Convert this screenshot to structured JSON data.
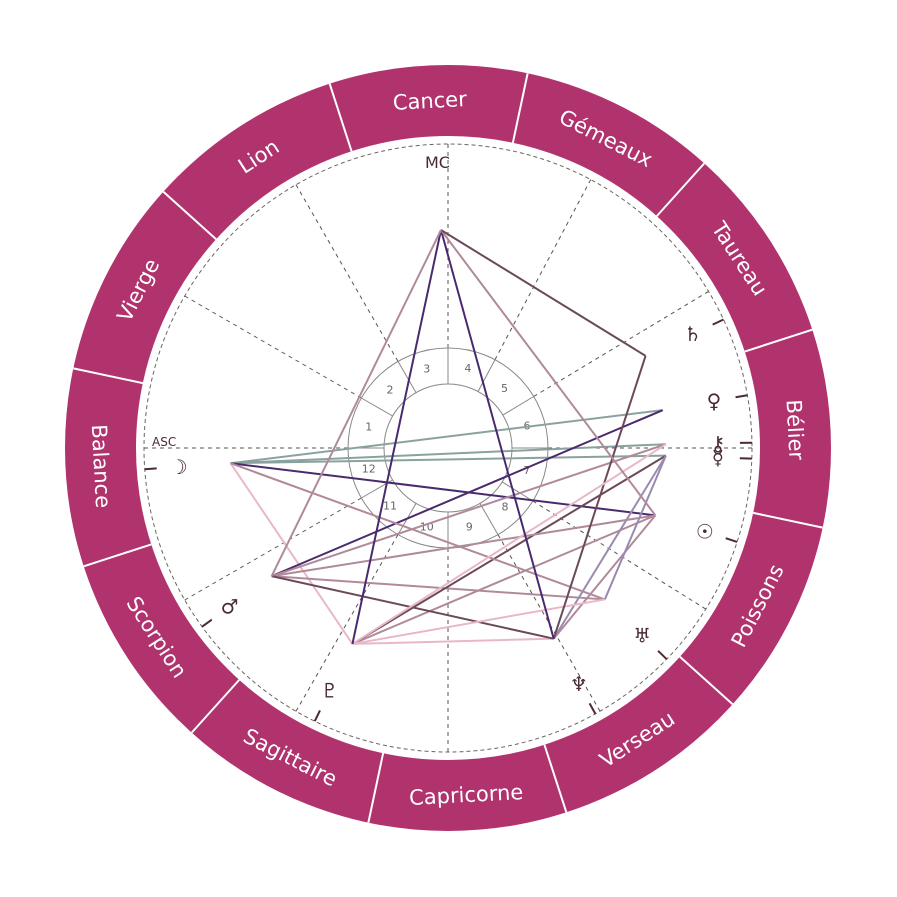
{
  "signs": [
    {
      "name": "Bélier",
      "start": 348
    },
    {
      "name": "Taureau",
      "start": 18
    },
    {
      "name": "Gémeaux",
      "start": 48
    },
    {
      "name": "Cancer",
      "start": 78
    },
    {
      "name": "Lion",
      "start": 108
    },
    {
      "name": "Vierge",
      "start": 138
    },
    {
      "name": "Balance",
      "start": 168
    },
    {
      "name": "Scorpion",
      "start": 198
    },
    {
      "name": "Sagittaire",
      "start": 228
    },
    {
      "name": "Capricorne",
      "start": 258
    },
    {
      "name": "Verseau",
      "start": 288
    },
    {
      "name": "Poissons",
      "start": 318
    }
  ],
  "house_cusps": [
    180,
    150,
    120,
    90,
    62,
    31,
    0,
    328,
    300,
    270,
    240,
    210
  ],
  "house_numbers": [
    "1",
    "2",
    "3",
    "4",
    "5",
    "6",
    "7",
    "8",
    "9",
    "10",
    "11",
    "12"
  ],
  "axes": {
    "asc": "ASC",
    "mc": "MC"
  },
  "planets": [
    {
      "name": "moon",
      "glyph": "☽",
      "angle": 184
    },
    {
      "name": "mars",
      "glyph": "♂",
      "angle": 216
    },
    {
      "name": "pluto",
      "glyph": "♇",
      "angle": 244
    },
    {
      "name": "neptune",
      "glyph": "♆",
      "angle": 299
    },
    {
      "name": "uranus",
      "glyph": "♅",
      "angle": 316
    },
    {
      "name": "sun",
      "glyph": "☉",
      "angle": 342
    },
    {
      "name": "mercury",
      "glyph": "☿",
      "angle": 358
    },
    {
      "name": "chiron",
      "glyph": "⚷",
      "angle": 1
    },
    {
      "name": "venus",
      "glyph": "♀",
      "angle": 10
    },
    {
      "name": "saturn",
      "glyph": "♄",
      "angle": 25
    }
  ],
  "colors": {
    "ring": "#b0336e",
    "lines": [
      "#4a2a6e",
      "#b08a9a",
      "#6a4a5a",
      "#8aa29e",
      "#e8b8c8",
      "#9a8ab0"
    ]
  }
}
